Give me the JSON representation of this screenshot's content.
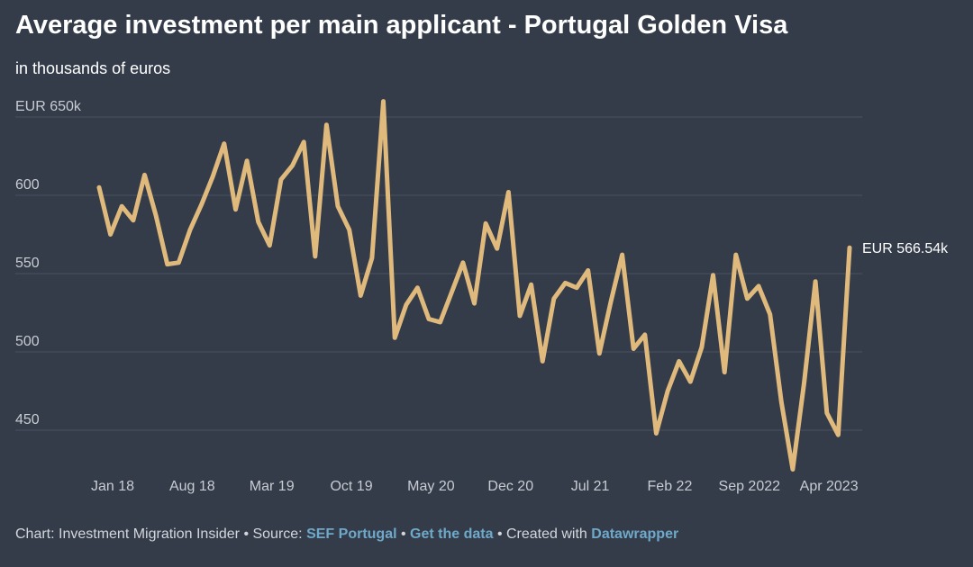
{
  "title": "Average investment per main applicant - Portugal Golden Visa",
  "subtitle": "in thousands of euros",
  "colors": {
    "background": "#343c4a",
    "line": "#e0ba7c",
    "grid": "#4a5262",
    "link": "#6fa8c9"
  },
  "chart_data": {
    "type": "line",
    "title": "Average investment per main applicant - Portugal Golden Visa",
    "ylabel": "in thousands of euros",
    "ylim": [
      420,
      665
    ],
    "yticks": [
      450,
      500,
      550,
      600,
      650
    ],
    "ytick_labels": [
      "450",
      "500",
      "550",
      "600",
      "EUR 650k"
    ],
    "xtick_labels": [
      "Jan 18",
      "Aug 18",
      "Mar 19",
      "Oct 19",
      "May 20",
      "Dec 20",
      "Jul 21",
      "Feb 22",
      "Sep 2022",
      "Apr 2023"
    ],
    "xtick_index": [
      0,
      7,
      14,
      21,
      28,
      35,
      42,
      49,
      56,
      63
    ],
    "series": [
      {
        "name": "Average investment per main applicant",
        "values": [
          605,
          575,
          593,
          584,
          613,
          587,
          556,
          557,
          578,
          594,
          612,
          633,
          591,
          622,
          583,
          568,
          610,
          619,
          634,
          561,
          645,
          593,
          578,
          536,
          560,
          660,
          509,
          530,
          541,
          521,
          519,
          538,
          557,
          531,
          582,
          566,
          602,
          523,
          543,
          494,
          534,
          544,
          541,
          552,
          499,
          532,
          562,
          502,
          511,
          448,
          475,
          494,
          481,
          503,
          549,
          487,
          562,
          534,
          542,
          524,
          468,
          425,
          480,
          545,
          461,
          447,
          566.54
        ]
      }
    ],
    "end_label": "EUR 566.54k"
  },
  "footer": {
    "prefix": "Chart: Investment Migration Insider • Source: ",
    "source_link": "SEF Portugal",
    "sep1": " • ",
    "data_link": "Get the data",
    "sep2": " • Created with ",
    "tool_link": "Datawrapper"
  }
}
